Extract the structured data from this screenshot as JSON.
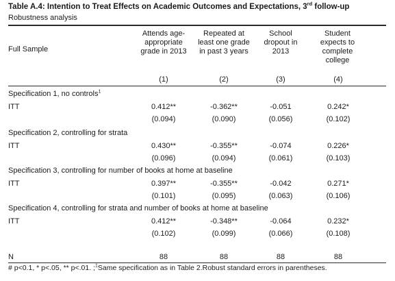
{
  "title": {
    "text": "Table A.4: Intention to Treat Effects on Academic Outcomes and Expectations, 3",
    "sup": "rd",
    "suffix": " follow-up"
  },
  "subtitle": "Robustness analysis",
  "header": {
    "row_label": "Full Sample",
    "columns": [
      {
        "label": "Attends age-appropriate grade in 2013",
        "number": "(1)"
      },
      {
        "label": "Repeated at least one grade in past 3 years",
        "number": "(2)"
      },
      {
        "label": "School dropout in 2013",
        "number": "(3)"
      },
      {
        "label": "Student expects to complete college",
        "number": "(4)"
      }
    ]
  },
  "specifications": [
    {
      "title": "Specification 1, no controls",
      "sup": "1",
      "row_label": "ITT",
      "coefficients": [
        "0.412**",
        "-0.362**",
        "-0.051",
        "0.242*"
      ],
      "std_errors": [
        "(0.094)",
        "(0.090)",
        "(0.056)",
        "(0.102)"
      ]
    },
    {
      "title": "Specification 2, controlling for strata",
      "sup": "",
      "row_label": "ITT",
      "coefficients": [
        "0.430**",
        "-0.355**",
        "-0.074",
        "0.226*"
      ],
      "std_errors": [
        "(0.096)",
        "(0.094)",
        "(0.061)",
        "(0.103)"
      ]
    },
    {
      "title": "Specification 3, controlling for number of books at home at baseline",
      "sup": "",
      "row_label": "ITT",
      "coefficients": [
        "0.397**",
        "-0.355**",
        "-0.042",
        "0.271*"
      ],
      "std_errors": [
        "(0.101)",
        "(0.095)",
        "(0.063)",
        "(0.106)"
      ]
    },
    {
      "title": "Specification 4, controlling for strata and number of books at home at baseline",
      "sup": "",
      "row_label": "ITT",
      "coefficients": [
        "0.412**",
        "-0.348**",
        "-0.064",
        "0.232*"
      ],
      "std_errors": [
        "(0.102)",
        "(0.099)",
        "(0.066)",
        "(0.108)"
      ]
    }
  ],
  "n_row": {
    "label": "N",
    "values": [
      "88",
      "88",
      "88",
      "88"
    ]
  },
  "footnote": {
    "part1": "# p<0.1, * p<.05, ** p<.01. ;",
    "sup": "1",
    "part2": "Same specification as in Table 2.Robust standard errors in parentheses."
  }
}
